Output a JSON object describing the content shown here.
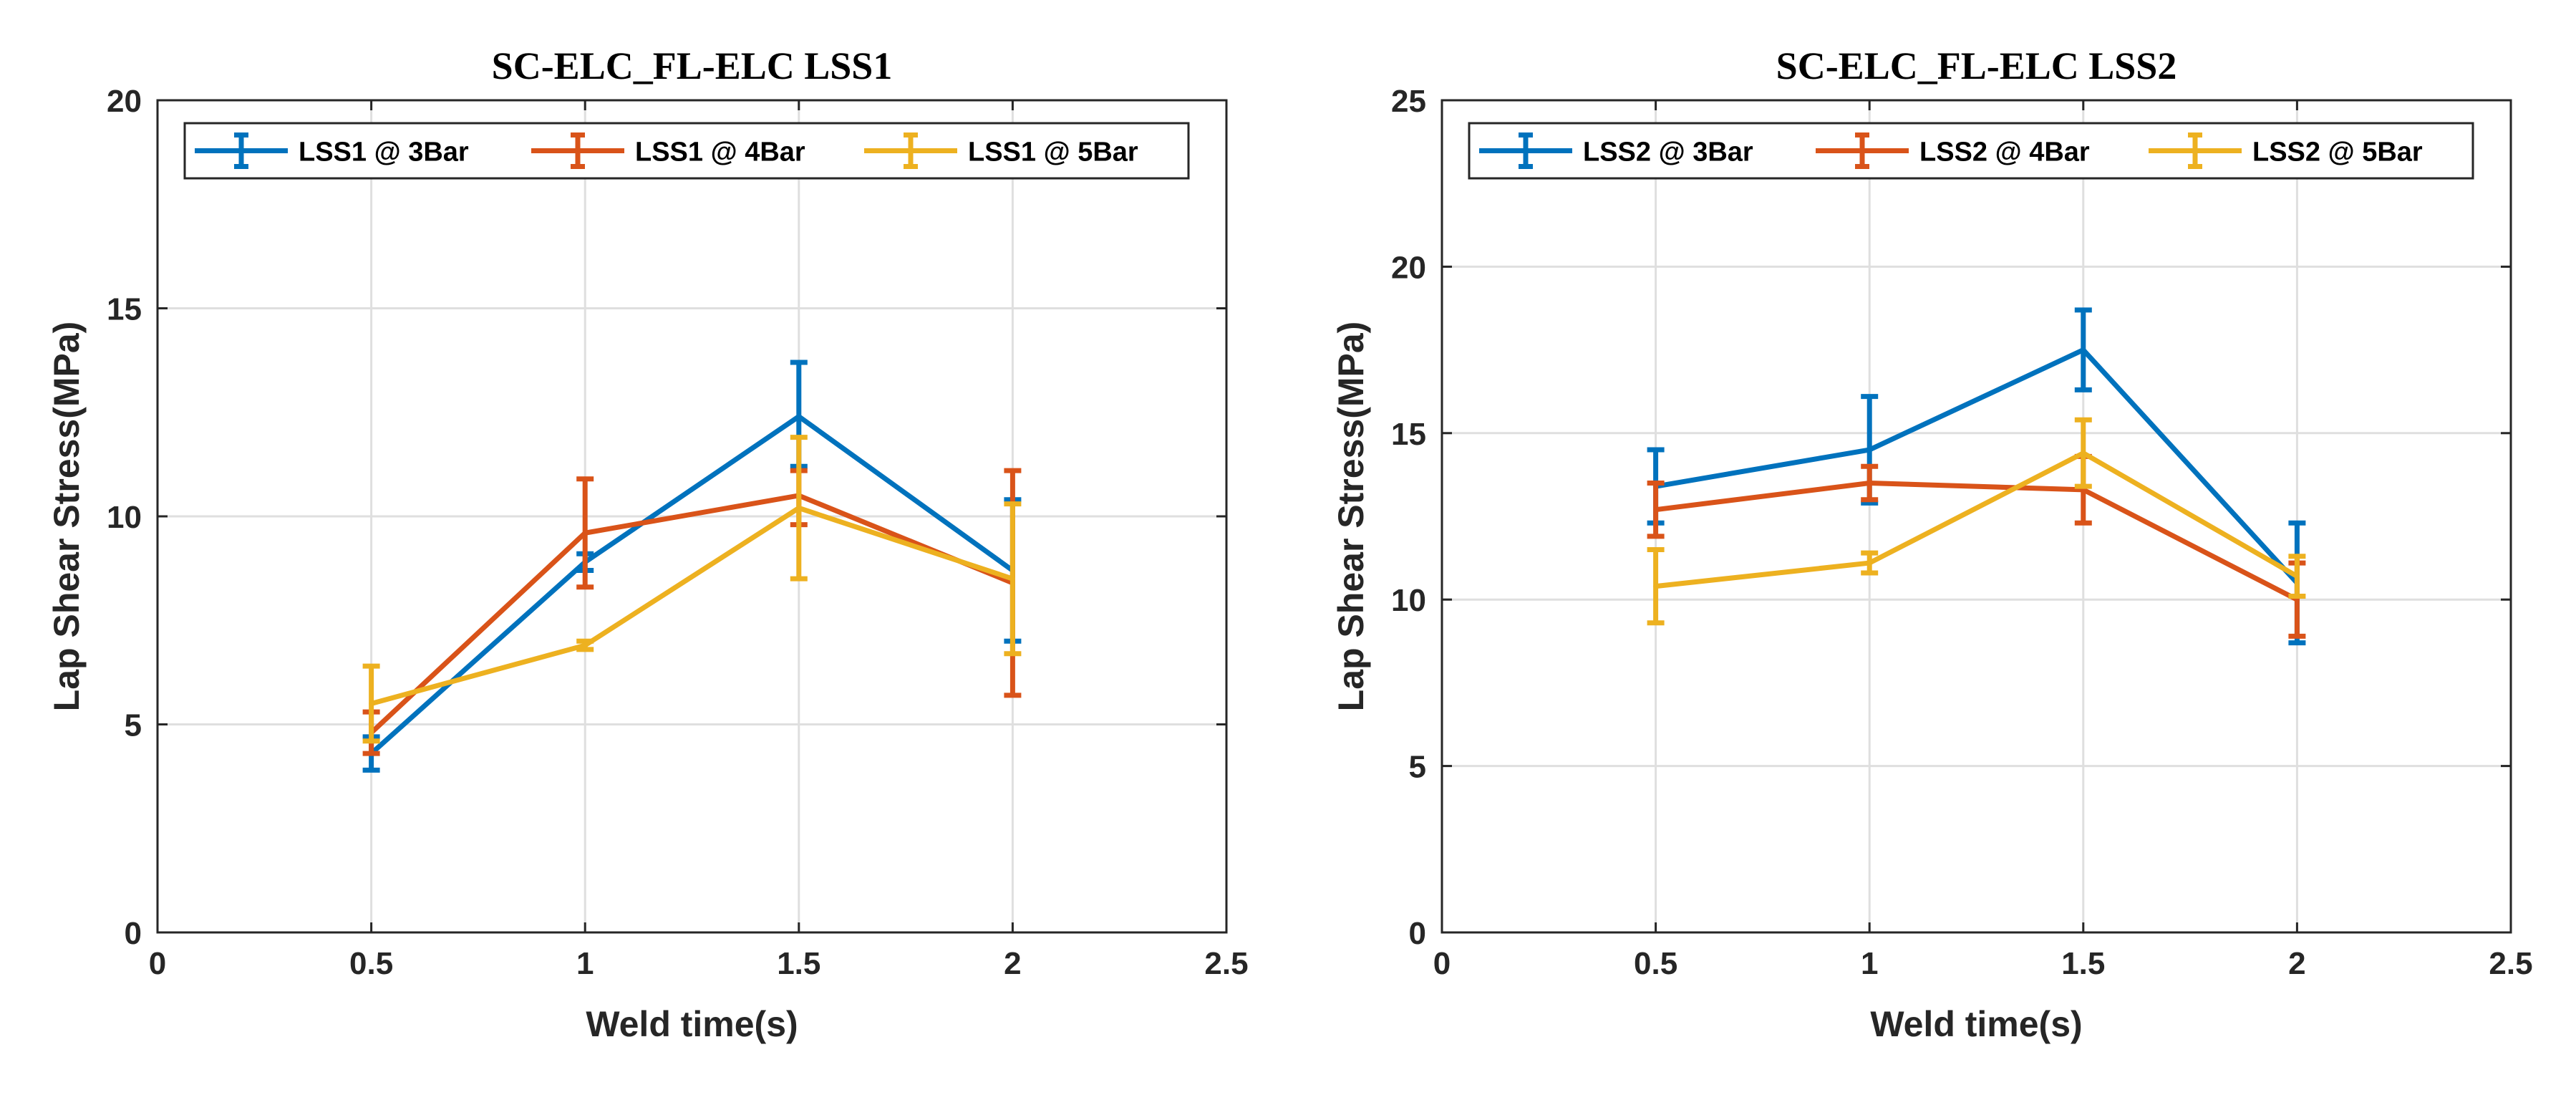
{
  "chart_data": [
    {
      "type": "line",
      "title": "SC-ELC_FL-ELC LSS1",
      "xlabel": "Weld time(s)",
      "ylabel": "Lap Shear Stress(MPa)",
      "xlim": [
        0,
        2.5
      ],
      "ylim": [
        0,
        20
      ],
      "xticks": [
        "0",
        "0.5",
        "1",
        "1.5",
        "2",
        "2.5"
      ],
      "yticks": [
        "0",
        "5",
        "10",
        "15",
        "20"
      ],
      "grid": true,
      "legend_position": "top",
      "x": [
        0.5,
        1,
        1.5,
        2
      ],
      "series": [
        {
          "name": "LSS1 @ 3Bar",
          "color": "#0072BD",
          "values": [
            4.3,
            8.9,
            12.4,
            8.7
          ],
          "err_low": [
            0.4,
            0.2,
            1.2,
            1.7
          ],
          "err_high": [
            0.4,
            0.2,
            1.3,
            1.7
          ]
        },
        {
          "name": "LSS1 @ 4Bar",
          "color": "#D95319",
          "values": [
            4.8,
            9.6,
            10.5,
            8.4
          ],
          "err_low": [
            0.5,
            1.3,
            0.7,
            2.7
          ],
          "err_high": [
            0.5,
            1.3,
            0.6,
            2.7
          ]
        },
        {
          "name": "LSS1 @ 5Bar",
          "color": "#EDB120",
          "values": [
            5.5,
            6.9,
            10.2,
            8.5
          ],
          "err_low": [
            0.9,
            0.1,
            1.7,
            1.8
          ],
          "err_high": [
            0.9,
            0.1,
            1.7,
            1.8
          ]
        }
      ]
    },
    {
      "type": "line",
      "title": "SC-ELC_FL-ELC LSS2",
      "xlabel": "Weld time(s)",
      "ylabel": "Lap Shear Stress(MPa)",
      "xlim": [
        0,
        2.5
      ],
      "ylim": [
        0,
        25
      ],
      "xticks": [
        "0",
        "0.5",
        "1",
        "1.5",
        "2",
        "2.5"
      ],
      "yticks": [
        "0",
        "5",
        "10",
        "15",
        "20",
        "25"
      ],
      "grid": true,
      "legend_position": "top",
      "x": [
        0.5,
        1,
        1.5,
        2
      ],
      "series": [
        {
          "name": "LSS2 @ 3Bar",
          "color": "#0072BD",
          "values": [
            13.4,
            14.5,
            17.5,
            10.5
          ],
          "err_low": [
            1.1,
            1.6,
            1.2,
            1.8
          ],
          "err_high": [
            1.1,
            1.6,
            1.2,
            1.8
          ]
        },
        {
          "name": "LSS2 @ 4Bar",
          "color": "#D95319",
          "values": [
            12.7,
            13.5,
            13.3,
            10.0
          ],
          "err_low": [
            0.8,
            0.5,
            1.0,
            1.1
          ],
          "err_high": [
            0.8,
            0.5,
            1.0,
            1.1
          ]
        },
        {
          "name": "LSS2 @ 5Bar",
          "color": "#EDB120",
          "values": [
            10.4,
            11.1,
            14.4,
            10.7
          ],
          "err_low": [
            1.1,
            0.3,
            1.0,
            0.6
          ],
          "err_high": [
            1.1,
            0.3,
            1.0,
            0.6
          ]
        }
      ]
    }
  ]
}
